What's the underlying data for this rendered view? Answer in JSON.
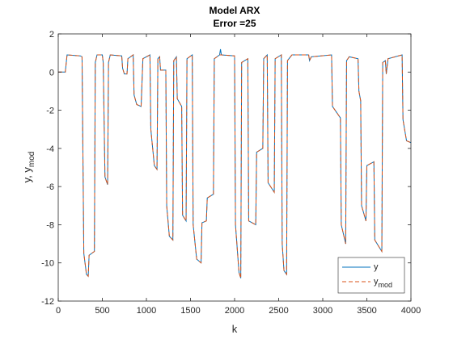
{
  "chart_data": {
    "type": "line",
    "title": [
      "Model ARX",
      "Error =25"
    ],
    "xlabel": "k",
    "ylabel": [
      "y, y",
      "mod"
    ],
    "x": [
      0,
      80,
      100,
      250,
      270,
      290,
      320,
      340,
      350,
      410,
      420,
      440,
      500,
      510,
      530,
      560,
      570,
      590,
      720,
      730,
      750,
      780,
      790,
      850,
      860,
      890,
      940,
      960,
      1040,
      1050,
      1090,
      1120,
      1130,
      1150,
      1160,
      1220,
      1230,
      1260,
      1300,
      1310,
      1340,
      1350,
      1400,
      1410,
      1450,
      1460,
      1520,
      1530,
      1570,
      1620,
      1630,
      1680,
      1690,
      1760,
      1770,
      1830,
      1840,
      1850,
      2000,
      2010,
      2050,
      2070,
      2080,
      2150,
      2160,
      2240,
      2250,
      2320,
      2330,
      2370,
      2380,
      2450,
      2460,
      2530,
      2540,
      2560,
      2590,
      2600,
      2650,
      2840,
      2850,
      2870,
      3100,
      3110,
      3200,
      3210,
      3260,
      3270,
      3300,
      3400,
      3410,
      3430,
      3440,
      3490,
      3500,
      3580,
      3590,
      3670,
      3680,
      3710,
      3720,
      3740,
      3900,
      3910,
      3950,
      4000
    ],
    "series": [
      {
        "name": "y",
        "color": "#0072bd",
        "dash": false,
        "values": [
          0,
          0,
          0.9,
          0.85,
          0.8,
          -9.5,
          -10.6,
          -10.7,
          -9.6,
          -9.4,
          0.5,
          0.9,
          0.9,
          0.5,
          -5.5,
          -5.9,
          0.5,
          0.9,
          0.85,
          0.2,
          -0.1,
          -0.1,
          0.7,
          0.9,
          -1.2,
          -1.7,
          -1.8,
          0.7,
          0.9,
          -3,
          -4.9,
          -5.1,
          0.7,
          0.8,
          0.1,
          0.1,
          -7,
          -8.6,
          -8.8,
          0.6,
          0.8,
          -1.4,
          -1.8,
          -7.5,
          -7.8,
          0.7,
          0.9,
          -8,
          -9.8,
          -10,
          -7.9,
          -7.8,
          -6.6,
          -6.4,
          0.7,
          0.9,
          1.2,
          0.9,
          0.85,
          -8,
          -10.5,
          -10.8,
          0.5,
          0.7,
          -7.8,
          -8,
          -4.2,
          -4,
          0.7,
          0.9,
          -5.8,
          -6.3,
          0.7,
          0.9,
          -9,
          -10.4,
          -10.6,
          0.6,
          0.9,
          0.9,
          0.6,
          0.8,
          0.9,
          -1.8,
          -2.4,
          -8,
          -9,
          0.6,
          0.8,
          0.7,
          -1,
          -1.5,
          -7,
          -7.8,
          -4.9,
          -4.7,
          -8.8,
          -9.4,
          0.5,
          0.6,
          -0.1,
          0.7,
          0.9,
          -2.5,
          -3.6,
          -3.7
        ]
      },
      {
        "name": "y",
        "name_sub": "mod",
        "color": "#d95319",
        "dash": true,
        "values": [
          0,
          0,
          0.9,
          0.85,
          0.8,
          -9.5,
          -10.6,
          -10.7,
          -9.6,
          -9.4,
          0.5,
          0.9,
          0.9,
          0.5,
          -5.5,
          -5.9,
          0.5,
          0.9,
          0.85,
          0.2,
          -0.1,
          -0.1,
          0.7,
          0.9,
          -1.2,
          -1.7,
          -1.8,
          0.7,
          0.9,
          -3,
          -4.9,
          -5.1,
          0.7,
          0.8,
          0.1,
          0.1,
          -7,
          -8.6,
          -8.8,
          0.6,
          0.8,
          -1.4,
          -1.8,
          -7.5,
          -7.8,
          0.7,
          0.9,
          -8,
          -9.8,
          -10,
          -7.9,
          -7.8,
          -6.6,
          -6.4,
          0.7,
          0.9,
          0.9,
          0.9,
          0.85,
          -8,
          -10.5,
          -10.8,
          0.5,
          0.7,
          -7.8,
          -8,
          -4.2,
          -4,
          0.7,
          0.9,
          -5.8,
          -6.3,
          0.7,
          0.9,
          -9,
          -10.4,
          -10.6,
          0.6,
          0.9,
          0.9,
          0.6,
          0.8,
          0.9,
          -1.8,
          -2.4,
          -8,
          -9,
          0.6,
          0.8,
          0.7,
          -1,
          -1.5,
          -7,
          -7.8,
          -4.9,
          -4.7,
          -8.8,
          -9.4,
          0.5,
          0.6,
          -0.1,
          0.7,
          0.9,
          -2.5,
          -3.6,
          -3.7
        ]
      }
    ],
    "xlim": [
      0,
      4000
    ],
    "xticks": [
      0,
      500,
      1000,
      1500,
      2000,
      2500,
      3000,
      3500,
      4000
    ],
    "ylim": [
      -12,
      2
    ],
    "yticks": [
      -12,
      -10,
      -8,
      -6,
      -4,
      -2,
      0,
      2
    ],
    "grid": false,
    "legend": "southeast"
  }
}
